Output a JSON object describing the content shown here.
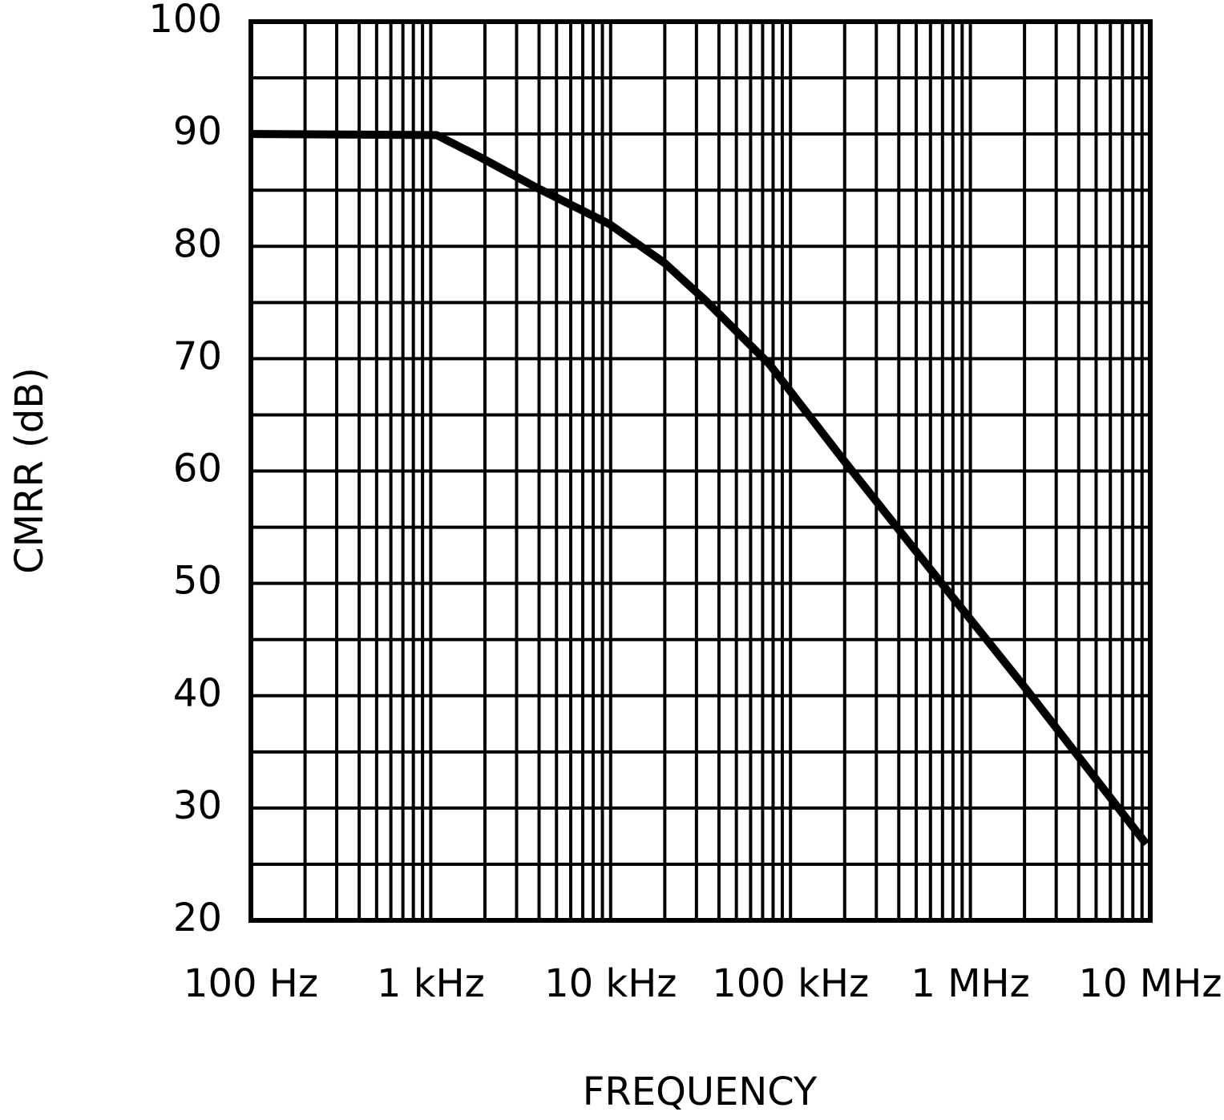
{
  "chart_data": {
    "type": "line",
    "x_label": "FREQUENCY",
    "y_label": "CMRR (dB)",
    "x_log": true,
    "grid": true,
    "xlim": [
      100,
      10000000
    ],
    "xticks": [
      {
        "value": 100,
        "label": "100 Hz"
      },
      {
        "value": 1000,
        "label": "1 kHz"
      },
      {
        "value": 10000,
        "label": "10 kHz"
      },
      {
        "value": 100000,
        "label": "100 kHz"
      },
      {
        "value": 1000000,
        "label": "1 MHz"
      },
      {
        "value": 10000000,
        "label": "10 MHz"
      }
    ],
    "xminorticks": [
      200,
      300,
      400,
      500,
      600,
      700,
      800,
      900,
      2000,
      3000,
      4000,
      5000,
      6000,
      7000,
      8000,
      9000,
      20000,
      30000,
      40000,
      50000,
      60000,
      70000,
      80000,
      90000,
      200000,
      300000,
      400000,
      500000,
      600000,
      700000,
      800000,
      900000,
      2000000,
      3000000,
      4000000,
      5000000,
      6000000,
      7000000,
      8000000,
      9000000
    ],
    "ylim": [
      20,
      100
    ],
    "yticks": [
      20,
      30,
      40,
      50,
      60,
      70,
      80,
      90,
      100
    ],
    "yminorticks": [
      25,
      35,
      45,
      55,
      65,
      75,
      85,
      95
    ],
    "x": [
      100,
      1080,
      1900,
      3900,
      9800,
      20000,
      33600,
      76400,
      192000,
      596000,
      2040000,
      9500000
    ],
    "series": [
      {
        "color": "#000000",
        "values": [
          90,
          89.9,
          87.9,
          85.2,
          82,
          78.5,
          75.2,
          69.5,
          61.2,
          51.3,
          40.6,
          26.8
        ]
      }
    ]
  }
}
